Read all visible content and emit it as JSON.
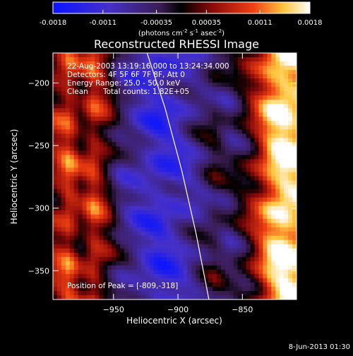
{
  "chart_data": {
    "type": "heatmap",
    "title": "Reconstructed RHESSI Image",
    "xlabel": "Heliocentric X (arcsec)",
    "ylabel": "Heliocentric Y (arcsec)",
    "xlim": [
      -997,
      -808
    ],
    "ylim": [
      -373,
      -176
    ],
    "x_ticks": [
      -950,
      -900,
      -850
    ],
    "y_ticks": [
      -200,
      -250,
      -300,
      -350
    ],
    "colorbar": {
      "ticks": [
        "-0.0018",
        "-0.0011",
        "-0.00035",
        "0.00035",
        "0.0011",
        "0.0018"
      ],
      "min": -0.0018,
      "max": 0.0018,
      "unit_prefix": "(photons cm",
      "unit_exp1": "-2",
      "unit_mid": " s",
      "unit_exp2": "-1",
      "unit_mid2": " asec",
      "unit_exp3": "-2",
      "unit_suffix": ")"
    },
    "annotations": {
      "line1": "22-Aug-2003 13:19:16.000 to 13:24:34.000",
      "line2": "Detectors: 4F 5F 6F 7F 8F, Att 0",
      "line3": "Energy Range: 25.0 - 50.0 keV",
      "line4a": "Clean",
      "line4b": "Total counts: 1.82E+05",
      "peak": "Position of Peak = [-809,-318]"
    },
    "limb_curve": [
      [
        -924,
        -176
      ],
      [
        -910,
        -220
      ],
      [
        -897,
        -270
      ],
      [
        -886,
        -320
      ],
      [
        -876,
        -373
      ]
    ],
    "intensity_profile_by_x": [
      [
        -997,
        0.0004
      ],
      [
        -985,
        0.0009
      ],
      [
        -975,
        0.0003
      ],
      [
        -965,
        0.0008
      ],
      [
        -955,
        0.0002
      ],
      [
        -945,
        -0.0005
      ],
      [
        -930,
        -0.0009
      ],
      [
        -915,
        -0.0012
      ],
      [
        -900,
        -0.001
      ],
      [
        -885,
        -0.0006
      ],
      [
        -872,
        -0.0002
      ],
      [
        -860,
        -0.0004
      ],
      [
        -848,
        0.0
      ],
      [
        -838,
        0.0006
      ],
      [
        -828,
        0.0014
      ],
      [
        -818,
        0.0018
      ],
      [
        -810,
        0.0016
      ]
    ]
  },
  "footer": {
    "date": "8-Jun-2013 01:30"
  }
}
